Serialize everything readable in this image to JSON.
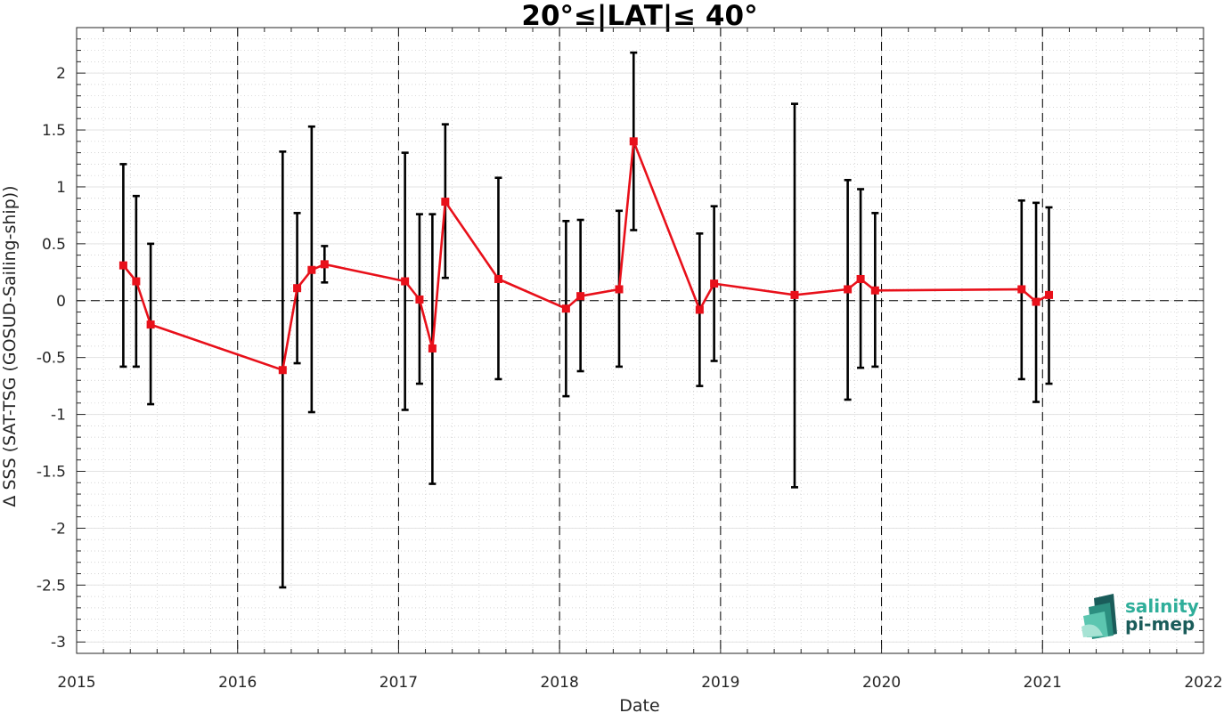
{
  "chart_data": {
    "type": "scatter",
    "title": "20°≤|LAT|≤ 40°",
    "xlabel": "Date",
    "ylabel": "Δ SSS (SAT-TSG (GOSUD-Sailing-ship))",
    "xlim": [
      2015,
      2022
    ],
    "ylim": [
      -3.1,
      2.4
    ],
    "x_ticks": [
      "2015",
      "2016",
      "2017",
      "2018",
      "2019",
      "2020",
      "2021",
      "2022"
    ],
    "y_ticks": [
      "-3",
      "-2.5",
      "-2",
      "-1.5",
      "-1",
      "-0.5",
      "0",
      "0.5",
      "1",
      "1.5",
      "2"
    ],
    "year_boundaries": [
      2016,
      2017,
      2018,
      2019,
      2020,
      2021
    ],
    "zero_line": 0,
    "grid": true,
    "colors": {
      "line": "#e8101a",
      "errorbar": "#000000",
      "logo_dark": "#1a5c5a",
      "logo_teal": "#2fae9a"
    },
    "series": [
      {
        "x": [
          2015.29,
          2015.37,
          2015.46,
          2016.28,
          2016.37,
          2016.46,
          2016.54,
          2017.04,
          2017.13,
          2017.21,
          2017.29,
          2017.62,
          2018.04,
          2018.13,
          2018.37,
          2018.46,
          2018.87,
          2018.96,
          2019.46,
          2019.79,
          2019.87,
          2019.96,
          2020.87,
          2020.96,
          2021.04
        ],
        "y": [
          0.31,
          0.17,
          -0.21,
          -0.61,
          0.11,
          0.27,
          0.32,
          0.17,
          0.01,
          -0.42,
          0.87,
          0.19,
          -0.07,
          0.04,
          0.1,
          1.4,
          -0.08,
          0.15,
          0.05,
          0.1,
          0.19,
          0.09,
          0.1,
          -0.01,
          0.05
        ],
        "err_low": [
          -0.58,
          -0.58,
          -0.91,
          -2.52,
          -0.55,
          -0.98,
          0.16,
          -0.96,
          -0.73,
          -1.61,
          0.2,
          -0.69,
          -0.84,
          -0.62,
          -0.58,
          0.62,
          -0.75,
          -0.53,
          -1.64,
          -0.87,
          -0.59,
          -0.58,
          -0.69,
          -0.89,
          -0.73
        ],
        "err_high": [
          1.2,
          0.92,
          0.5,
          1.31,
          0.77,
          1.53,
          0.48,
          1.3,
          0.76,
          0.76,
          1.55,
          1.08,
          0.7,
          0.71,
          0.79,
          2.18,
          0.59,
          0.83,
          1.73,
          1.06,
          0.98,
          0.77,
          0.88,
          0.86,
          0.82
        ]
      }
    ]
  },
  "logo": {
    "line1": "salinity",
    "line2": "pi-mep"
  }
}
